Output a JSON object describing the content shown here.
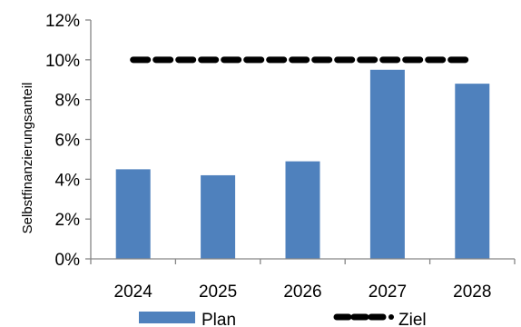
{
  "chart_data": {
    "type": "bar",
    "categories": [
      "2024",
      "2025",
      "2026",
      "2027",
      "2028"
    ],
    "series": [
      {
        "name": "Plan",
        "type": "bar",
        "values": [
          4.5,
          4.2,
          4.9,
          9.5,
          8.8
        ],
        "color": "#4F81BD"
      },
      {
        "name": "Ziel",
        "type": "line",
        "style": "dashed",
        "values": [
          10,
          10,
          10,
          10,
          10
        ],
        "color": "#000000"
      }
    ],
    "ylabel": "Selbstfinanzierungsanteil",
    "xlabel": "",
    "ylim": [
      0,
      12
    ],
    "yticks": [
      "0%",
      "2%",
      "4%",
      "6%",
      "8%",
      "10%",
      "12%"
    ],
    "grid": false,
    "legend_position": "bottom"
  }
}
